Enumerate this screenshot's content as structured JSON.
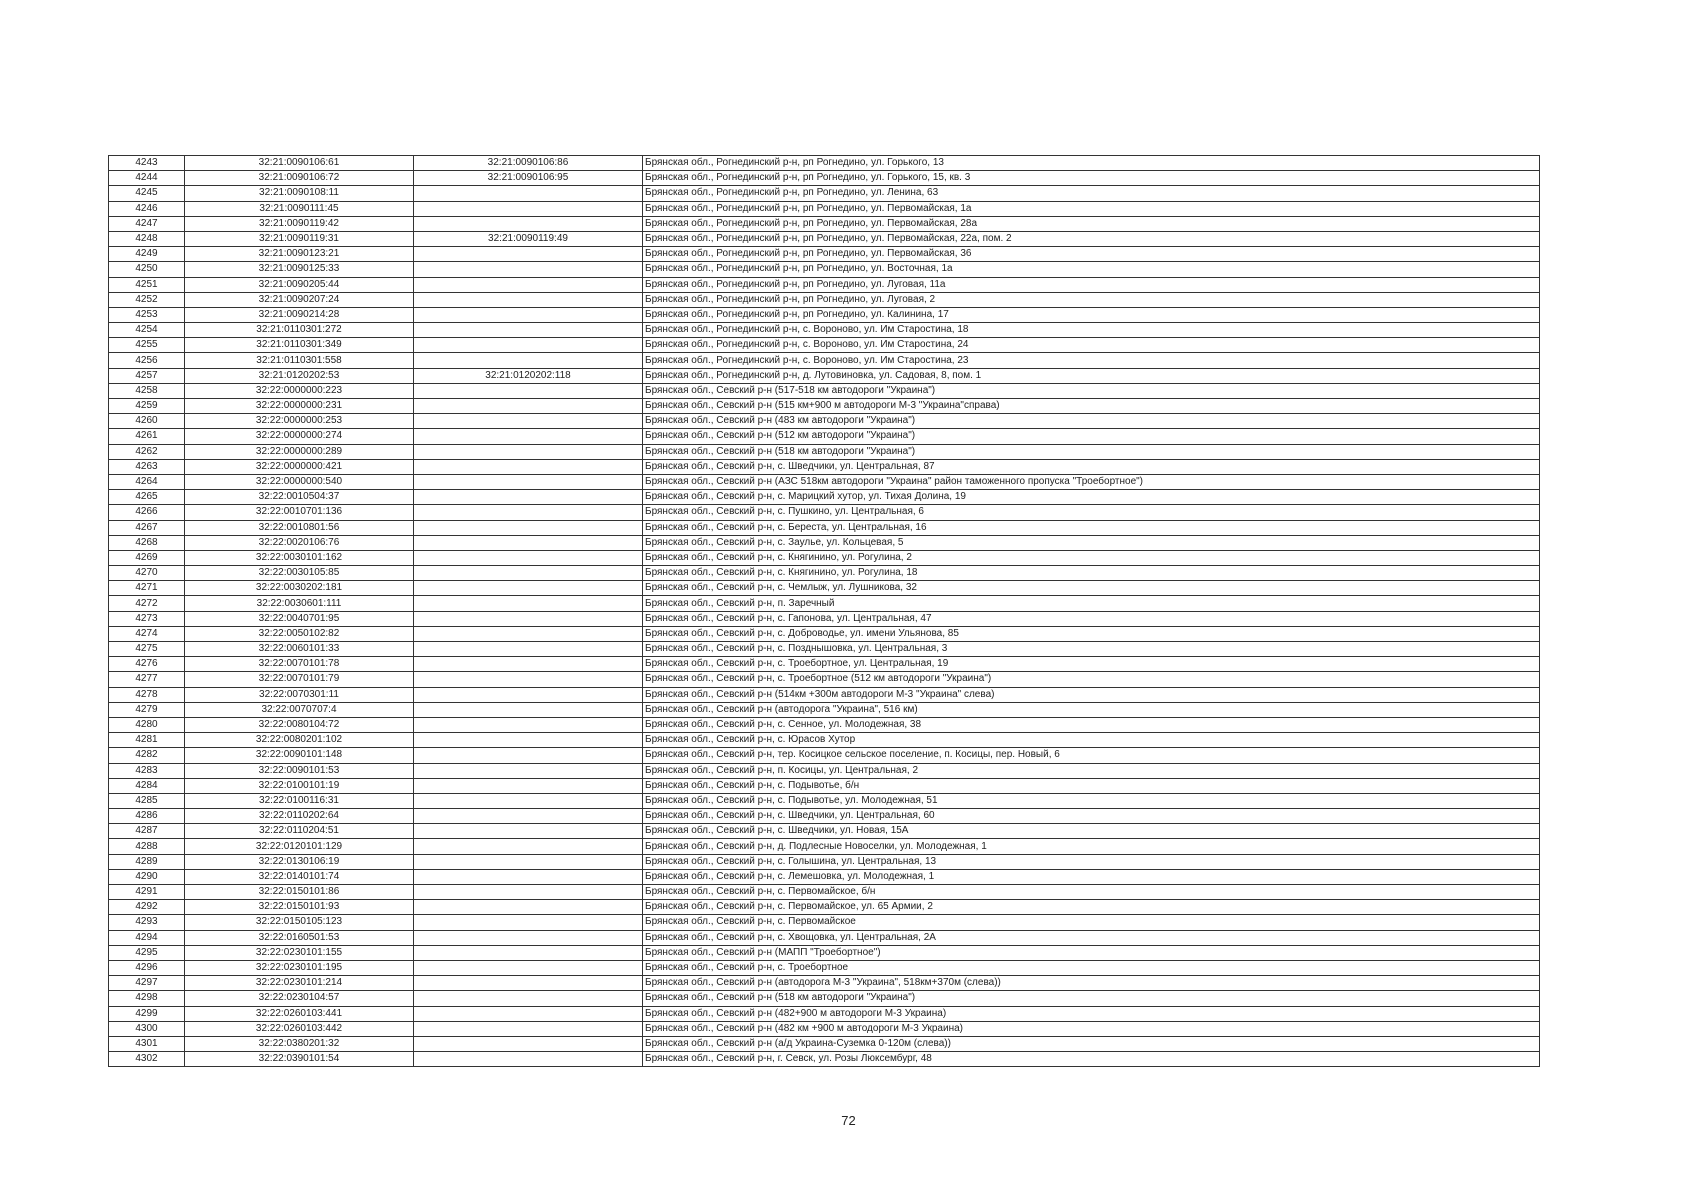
{
  "page_number": "72",
  "rows": [
    [
      "4243",
      "32:21:0090106:61",
      "32:21:0090106:86",
      "Брянская обл., Рогнединский р-н, рп Рогнедино, ул. Горького, 13"
    ],
    [
      "4244",
      "32:21:0090106:72",
      "32:21:0090106:95",
      "Брянская обл., Рогнединский р-н, рп Рогнедино, ул. Горького, 15, кв. 3"
    ],
    [
      "4245",
      "32:21:0090108:11",
      "",
      "Брянская обл., Рогнединский р-н, рп Рогнедино, ул. Ленина, 63"
    ],
    [
      "4246",
      "32:21:0090111:45",
      "",
      "Брянская обл., Рогнединский р-н, рп Рогнедино, ул. Первомайская, 1а"
    ],
    [
      "4247",
      "32:21:0090119:42",
      "",
      "Брянская обл., Рогнединский р-н, рп Рогнедино, ул. Первомайская, 28а"
    ],
    [
      "4248",
      "32:21:0090119:31",
      "32:21:0090119:49",
      "Брянская обл., Рогнединский р-н, рп Рогнедино, ул. Первомайская, 22а, пом. 2"
    ],
    [
      "4249",
      "32:21:0090123:21",
      "",
      "Брянская обл., Рогнединский р-н, рп Рогнедино, ул. Первомайская, 36"
    ],
    [
      "4250",
      "32:21:0090125:33",
      "",
      "Брянская обл., Рогнединский р-н, рп Рогнедино, ул. Восточная, 1а"
    ],
    [
      "4251",
      "32:21:0090205:44",
      "",
      "Брянская обл., Рогнединский р-н, рп Рогнедино, ул. Луговая, 11а"
    ],
    [
      "4252",
      "32:21:0090207:24",
      "",
      "Брянская обл., Рогнединский р-н, рп Рогнедино, ул. Луговая, 2"
    ],
    [
      "4253",
      "32:21:0090214:28",
      "",
      "Брянская обл., Рогнединский р-н, рп Рогнедино, ул. Калинина, 17"
    ],
    [
      "4254",
      "32:21:0110301:272",
      "",
      "Брянская обл., Рогнединский р-н, с. Вороново, ул. Им Старостина, 18"
    ],
    [
      "4255",
      "32:21:0110301:349",
      "",
      "Брянская обл., Рогнединский р-н, с. Вороново, ул. Им Старостина, 24"
    ],
    [
      "4256",
      "32:21:0110301:558",
      "",
      "Брянская обл., Рогнединский р-н, с. Вороново, ул. Им Старостина, 23"
    ],
    [
      "4257",
      "32:21:0120202:53",
      "32:21:0120202:118",
      "Брянская обл., Рогнединский р-н, д. Лутовиновка, ул. Садовая, 8, пом. 1"
    ],
    [
      "4258",
      "32:22:0000000:223",
      "",
      "Брянская обл., Севский р-н (517-518 км автодороги \"Украина\")"
    ],
    [
      "4259",
      "32:22:0000000:231",
      "",
      "Брянская обл., Севский р-н (515 км+900 м автодороги М-3 \"Украина\"справа)"
    ],
    [
      "4260",
      "32:22:0000000:253",
      "",
      "Брянская обл., Севский р-н (483 км автодороги \"Украина\")"
    ],
    [
      "4261",
      "32:22:0000000:274",
      "",
      "Брянская обл., Севский р-н (512 км автодороги \"Украина\")"
    ],
    [
      "4262",
      "32:22:0000000:289",
      "",
      "Брянская обл., Севский р-н (518 км автодороги \"Украина\")"
    ],
    [
      "4263",
      "32:22:0000000:421",
      "",
      "Брянская обл., Севский р-н, с. Шведчики, ул. Центральная, 87"
    ],
    [
      "4264",
      "32:22:0000000:540",
      "",
      "Брянская обл., Севский р-н (АЗС 518км автодороги \"Украина\" район таможенного пропуска \"Троебортное\")"
    ],
    [
      "4265",
      "32:22:0010504:37",
      "",
      "Брянская обл., Севский р-н, с. Марицкий хутор, ул. Тихая Долина, 19"
    ],
    [
      "4266",
      "32:22:0010701:136",
      "",
      "Брянская обл., Севский р-н, с. Пушкино, ул. Центральная, 6"
    ],
    [
      "4267",
      "32:22:0010801:56",
      "",
      "Брянская обл., Севский р-н, с. Береста, ул. Центральная, 16"
    ],
    [
      "4268",
      "32:22:0020106:76",
      "",
      "Брянская обл., Севский р-н, с. Заулье, ул. Кольцевая, 5"
    ],
    [
      "4269",
      "32:22:0030101:162",
      "",
      "Брянская обл., Севский р-н, с. Княгинино, ул. Рогулина, 2"
    ],
    [
      "4270",
      "32:22:0030105:85",
      "",
      "Брянская обл., Севский р-н, с. Княгинино, ул. Рогулина, 18"
    ],
    [
      "4271",
      "32:22:0030202:181",
      "",
      "Брянская обл., Севский р-н, с. Чемлыж, ул. Лушникова, 32"
    ],
    [
      "4272",
      "32:22:0030601:111",
      "",
      "Брянская обл., Севский р-н, п. Заречный"
    ],
    [
      "4273",
      "32:22:0040701:95",
      "",
      "Брянская обл., Севский р-н, с. Гапонова, ул. Центральная, 47"
    ],
    [
      "4274",
      "32:22:0050102:82",
      "",
      "Брянская обл., Севский р-н, с. Доброводье, ул. имени Ульянова, 85"
    ],
    [
      "4275",
      "32:22:0060101:33",
      "",
      "Брянская обл., Севский р-н, с. Позднышовка, ул. Центральная, 3"
    ],
    [
      "4276",
      "32:22:0070101:78",
      "",
      "Брянская обл., Севский р-н, с. Троебортное, ул. Центральная, 19"
    ],
    [
      "4277",
      "32:22:0070101:79",
      "",
      "Брянская обл., Севский р-н, с. Троебортное (512 км автодороги \"Украина\")"
    ],
    [
      "4278",
      "32:22:0070301:11",
      "",
      "Брянская обл., Севский р-н (514км +300м автодороги М-3 \"Украина\" слева)"
    ],
    [
      "4279",
      "32:22:0070707:4",
      "",
      "Брянская обл., Севский р-н (автодорога \"Украина\", 516 км)"
    ],
    [
      "4280",
      "32:22:0080104:72",
      "",
      "Брянская обл., Севский р-н, с. Сенное, ул. Молодежная, 38"
    ],
    [
      "4281",
      "32:22:0080201:102",
      "",
      "Брянская обл., Севский р-н, с. Юрасов Хутор"
    ],
    [
      "4282",
      "32:22:0090101:148",
      "",
      "Брянская обл., Севский р-н, тер. Косицкое сельское поселение, п. Косицы, пер. Новый, 6"
    ],
    [
      "4283",
      "32:22:0090101:53",
      "",
      "Брянская обл., Севский р-н, п. Косицы, ул. Центральная, 2"
    ],
    [
      "4284",
      "32:22:0100101:19",
      "",
      "Брянская обл., Севский р-н, с. Подывотье, б/н"
    ],
    [
      "4285",
      "32:22:0100116:31",
      "",
      "Брянская обл., Севский р-н, с. Подывотье, ул. Молодежная, 51"
    ],
    [
      "4286",
      "32:22:0110202:64",
      "",
      "Брянская обл., Севский р-н, с. Шведчики, ул. Центральная, 60"
    ],
    [
      "4287",
      "32:22:0110204:51",
      "",
      "Брянская обл., Севский р-н, с. Шведчики, ул. Новая, 15А"
    ],
    [
      "4288",
      "32:22:0120101:129",
      "",
      "Брянская обл., Севский р-н, д. Подлесные Новоселки, ул. Молодежная, 1"
    ],
    [
      "4289",
      "32:22:0130106:19",
      "",
      "Брянская обл., Севский р-н, с. Голышина, ул. Центральная, 13"
    ],
    [
      "4290",
      "32:22:0140101:74",
      "",
      "Брянская обл., Севский р-н, с. Лемешовка, ул. Молодежная, 1"
    ],
    [
      "4291",
      "32:22:0150101:86",
      "",
      "Брянская обл., Севский р-н, с. Первомайское, б/н"
    ],
    [
      "4292",
      "32:22:0150101:93",
      "",
      "Брянская обл., Севский р-н, с. Первомайское, ул. 65 Армии, 2"
    ],
    [
      "4293",
      "32:22:0150105:123",
      "",
      "Брянская обл., Севский р-н, с. Первомайское"
    ],
    [
      "4294",
      "32:22:0160501:53",
      "",
      "Брянская обл., Севский р-н, с. Хвощовка, ул. Центральная, 2А"
    ],
    [
      "4295",
      "32:22:0230101:155",
      "",
      "Брянская обл., Севский р-н (МАПП \"Троебортное\")"
    ],
    [
      "4296",
      "32:22:0230101:195",
      "",
      "Брянская обл., Севский р-н, с. Троебортное"
    ],
    [
      "4297",
      "32:22:0230101:214",
      "",
      "Брянская обл., Севский р-н (автодорога М-3 \"Украина\", 518км+370м (слева))"
    ],
    [
      "4298",
      "32:22:0230104:57",
      "",
      "Брянская обл., Севский р-н (518 км автодороги \"Украина\")"
    ],
    [
      "4299",
      "32:22:0260103:441",
      "",
      "Брянская обл., Севский р-н (482+900 м автодороги М-3 Украина)"
    ],
    [
      "4300",
      "32:22:0260103:442",
      "",
      "Брянская обл., Севский р-н (482 км +900 м автодороги М-3 Украина)"
    ],
    [
      "4301",
      "32:22:0380201:32",
      "",
      "Брянская обл., Севский р-н (а/д Украина-Суземка 0-120м (слева))"
    ],
    [
      "4302",
      "32:22:0390101:54",
      "",
      "Брянская обл., Севский р-н, г. Севск, ул. Розы Люксембург, 48"
    ]
  ]
}
